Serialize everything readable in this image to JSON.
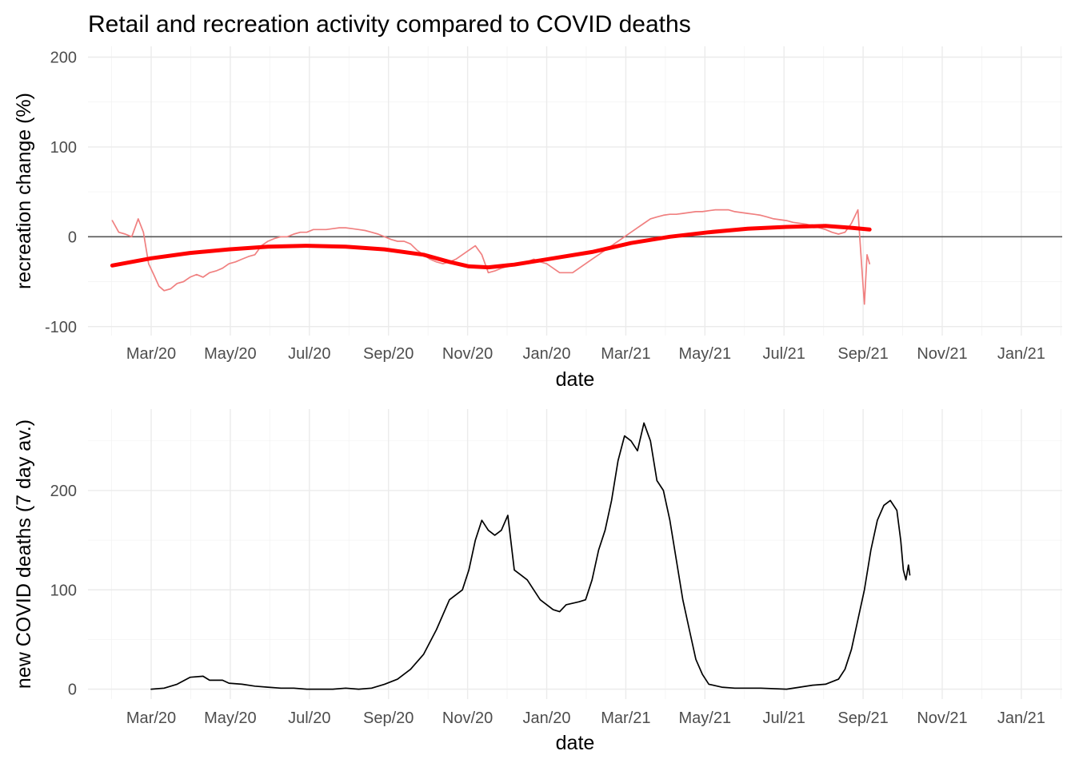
{
  "page": {
    "title": "Retail and recreation activity compared to COVID deaths"
  },
  "chart_data": [
    {
      "id": "recreation",
      "type": "line",
      "xlabel": "date",
      "ylabel": "recreation change (%)",
      "x_ticks": [
        "Mar/20",
        "May/20",
        "Jul/20",
        "Sep/20",
        "Nov/20",
        "Jan/20",
        "Mar/21",
        "May/21",
        "Jul/21",
        "Sep/21",
        "Nov/21",
        "Jan/21"
      ],
      "y_ticks": [
        -100,
        0,
        100,
        200
      ],
      "ylim": [
        -110,
        212
      ],
      "xlim_days": [
        -30,
        680
      ],
      "hline": 0,
      "colors": {
        "raw": "#f08080",
        "smooth": "#ff0000",
        "hline": "#555555"
      },
      "series": [
        {
          "name": "daily recreation change",
          "points_day_value": [
            [
              0,
              18
            ],
            [
              5,
              5
            ],
            [
              10,
              3
            ],
            [
              15,
              0
            ],
            [
              20,
              20
            ],
            [
              24,
              5
            ],
            [
              28,
              -30
            ],
            [
              32,
              -42
            ],
            [
              36,
              -55
            ],
            [
              40,
              -60
            ],
            [
              45,
              -58
            ],
            [
              50,
              -52
            ],
            [
              55,
              -50
            ],
            [
              60,
              -45
            ],
            [
              65,
              -42
            ],
            [
              70,
              -45
            ],
            [
              75,
              -40
            ],
            [
              80,
              -38
            ],
            [
              85,
              -35
            ],
            [
              90,
              -30
            ],
            [
              95,
              -28
            ],
            [
              100,
              -25
            ],
            [
              105,
              -22
            ],
            [
              110,
              -20
            ],
            [
              115,
              -10
            ],
            [
              120,
              -5
            ],
            [
              125,
              -2
            ],
            [
              130,
              0
            ],
            [
              135,
              0
            ],
            [
              140,
              3
            ],
            [
              145,
              5
            ],
            [
              150,
              5
            ],
            [
              155,
              8
            ],
            [
              160,
              8
            ],
            [
              165,
              8
            ],
            [
              170,
              9
            ],
            [
              175,
              10
            ],
            [
              180,
              10
            ],
            [
              185,
              9
            ],
            [
              190,
              8
            ],
            [
              195,
              7
            ],
            [
              200,
              5
            ],
            [
              205,
              3
            ],
            [
              210,
              0
            ],
            [
              215,
              -3
            ],
            [
              220,
              -5
            ],
            [
              225,
              -5
            ],
            [
              230,
              -8
            ],
            [
              235,
              -15
            ],
            [
              240,
              -20
            ],
            [
              245,
              -25
            ],
            [
              250,
              -28
            ],
            [
              255,
              -30
            ],
            [
              260,
              -28
            ],
            [
              265,
              -25
            ],
            [
              270,
              -20
            ],
            [
              275,
              -15
            ],
            [
              280,
              -10
            ],
            [
              285,
              -20
            ],
            [
              290,
              -40
            ],
            [
              295,
              -38
            ],
            [
              300,
              -35
            ],
            [
              305,
              -33
            ],
            [
              310,
              -32
            ],
            [
              315,
              -30
            ],
            [
              320,
              -28
            ],
            [
              325,
              -25
            ],
            [
              330,
              -28
            ],
            [
              335,
              -30
            ],
            [
              340,
              -35
            ],
            [
              345,
              -40
            ],
            [
              350,
              -40
            ],
            [
              355,
              -40
            ],
            [
              360,
              -35
            ],
            [
              365,
              -30
            ],
            [
              370,
              -25
            ],
            [
              375,
              -20
            ],
            [
              380,
              -15
            ],
            [
              385,
              -10
            ],
            [
              390,
              -5
            ],
            [
              395,
              0
            ],
            [
              400,
              5
            ],
            [
              405,
              10
            ],
            [
              410,
              15
            ],
            [
              415,
              20
            ],
            [
              420,
              22
            ],
            [
              425,
              24
            ],
            [
              430,
              25
            ],
            [
              435,
              25
            ],
            [
              440,
              26
            ],
            [
              445,
              27
            ],
            [
              450,
              28
            ],
            [
              455,
              28
            ],
            [
              460,
              29
            ],
            [
              465,
              30
            ],
            [
              470,
              30
            ],
            [
              475,
              30
            ],
            [
              480,
              28
            ],
            [
              485,
              27
            ],
            [
              490,
              26
            ],
            [
              495,
              25
            ],
            [
              500,
              24
            ],
            [
              505,
              22
            ],
            [
              510,
              20
            ],
            [
              515,
              19
            ],
            [
              520,
              18
            ],
            [
              525,
              16
            ],
            [
              530,
              15
            ],
            [
              535,
              14
            ],
            [
              540,
              12
            ],
            [
              545,
              10
            ],
            [
              550,
              8
            ],
            [
              555,
              5
            ],
            [
              560,
              3
            ],
            [
              565,
              5
            ],
            [
              570,
              15
            ],
            [
              575,
              30
            ],
            [
              578,
              -35
            ],
            [
              580,
              -75
            ],
            [
              582,
              -20
            ],
            [
              584,
              -30
            ]
          ]
        },
        {
          "name": "smoothed trend",
          "points_day_value": [
            [
              0,
              -32
            ],
            [
              30,
              -24
            ],
            [
              60,
              -18
            ],
            [
              90,
              -14
            ],
            [
              120,
              -11
            ],
            [
              150,
              -10
            ],
            [
              180,
              -11
            ],
            [
              210,
              -14
            ],
            [
              240,
              -20
            ],
            [
              260,
              -28
            ],
            [
              275,
              -33
            ],
            [
              290,
              -34
            ],
            [
              310,
              -31
            ],
            [
              340,
              -24
            ],
            [
              370,
              -17
            ],
            [
              400,
              -7
            ],
            [
              430,
              0
            ],
            [
              460,
              5
            ],
            [
              490,
              9
            ],
            [
              520,
              11
            ],
            [
              550,
              12
            ],
            [
              570,
              10
            ],
            [
              584,
              8
            ]
          ]
        }
      ]
    },
    {
      "id": "deaths",
      "type": "line",
      "xlabel": "date",
      "ylabel": "new COVID deaths (7 day av.)",
      "x_ticks": [
        "Mar/20",
        "May/20",
        "Jul/20",
        "Sep/20",
        "Nov/20",
        "Jan/20",
        "Mar/21",
        "May/21",
        "Jul/21",
        "Sep/21",
        "Nov/21",
        "Jan/21"
      ],
      "y_ticks": [
        0,
        100,
        200
      ],
      "ylim": [
        -10,
        282
      ],
      "xlim_days": [
        -30,
        680
      ],
      "colors": {
        "line": "#000000"
      },
      "series": [
        {
          "name": "new COVID deaths (7 day av.)",
          "points_day_value": [
            [
              30,
              0
            ],
            [
              40,
              1
            ],
            [
              50,
              5
            ],
            [
              60,
              12
            ],
            [
              70,
              13
            ],
            [
              75,
              9
            ],
            [
              85,
              9
            ],
            [
              90,
              6
            ],
            [
              100,
              5
            ],
            [
              110,
              3
            ],
            [
              120,
              2
            ],
            [
              130,
              1
            ],
            [
              140,
              1
            ],
            [
              150,
              0
            ],
            [
              160,
              0
            ],
            [
              170,
              0
            ],
            [
              180,
              1
            ],
            [
              190,
              0
            ],
            [
              200,
              1
            ],
            [
              210,
              5
            ],
            [
              220,
              10
            ],
            [
              230,
              20
            ],
            [
              240,
              35
            ],
            [
              250,
              60
            ],
            [
              260,
              90
            ],
            [
              270,
              100
            ],
            [
              275,
              120
            ],
            [
              280,
              150
            ],
            [
              285,
              170
            ],
            [
              290,
              160
            ],
            [
              295,
              155
            ],
            [
              300,
              160
            ],
            [
              305,
              175
            ],
            [
              310,
              120
            ],
            [
              315,
              115
            ],
            [
              320,
              110
            ],
            [
              325,
              100
            ],
            [
              330,
              90
            ],
            [
              340,
              80
            ],
            [
              345,
              78
            ],
            [
              350,
              85
            ],
            [
              360,
              88
            ],
            [
              365,
              90
            ],
            [
              370,
              110
            ],
            [
              375,
              140
            ],
            [
              380,
              160
            ],
            [
              385,
              190
            ],
            [
              390,
              230
            ],
            [
              395,
              255
            ],
            [
              400,
              250
            ],
            [
              405,
              240
            ],
            [
              410,
              268
            ],
            [
              415,
              250
            ],
            [
              420,
              210
            ],
            [
              425,
              200
            ],
            [
              430,
              170
            ],
            [
              435,
              130
            ],
            [
              440,
              90
            ],
            [
              445,
              60
            ],
            [
              450,
              30
            ],
            [
              455,
              15
            ],
            [
              460,
              5
            ],
            [
              470,
              2
            ],
            [
              480,
              1
            ],
            [
              500,
              1
            ],
            [
              520,
              0
            ],
            [
              530,
              2
            ],
            [
              540,
              4
            ],
            [
              550,
              5
            ],
            [
              560,
              10
            ],
            [
              565,
              20
            ],
            [
              570,
              40
            ],
            [
              575,
              70
            ],
            [
              580,
              100
            ],
            [
              585,
              140
            ],
            [
              590,
              170
            ],
            [
              595,
              185
            ],
            [
              600,
              190
            ],
            [
              605,
              180
            ],
            [
              608,
              150
            ],
            [
              610,
              120
            ],
            [
              612,
              110
            ],
            [
              614,
              125
            ],
            [
              615,
              115
            ]
          ]
        }
      ]
    }
  ]
}
